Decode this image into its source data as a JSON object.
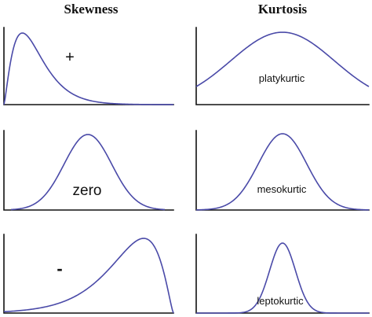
{
  "columns": {
    "skewness": "Skewness",
    "kurtosis": "Kurtosis"
  },
  "panels": {
    "skew_positive": "+",
    "skew_zero": "zero",
    "skew_negative": "-",
    "kurt_platy": "platykurtic",
    "kurt_meso": "mesokurtic",
    "kurt_lepto": "leptokurtic"
  },
  "colors": {
    "curve": "#4a4aa8",
    "axis": "#111111"
  }
}
